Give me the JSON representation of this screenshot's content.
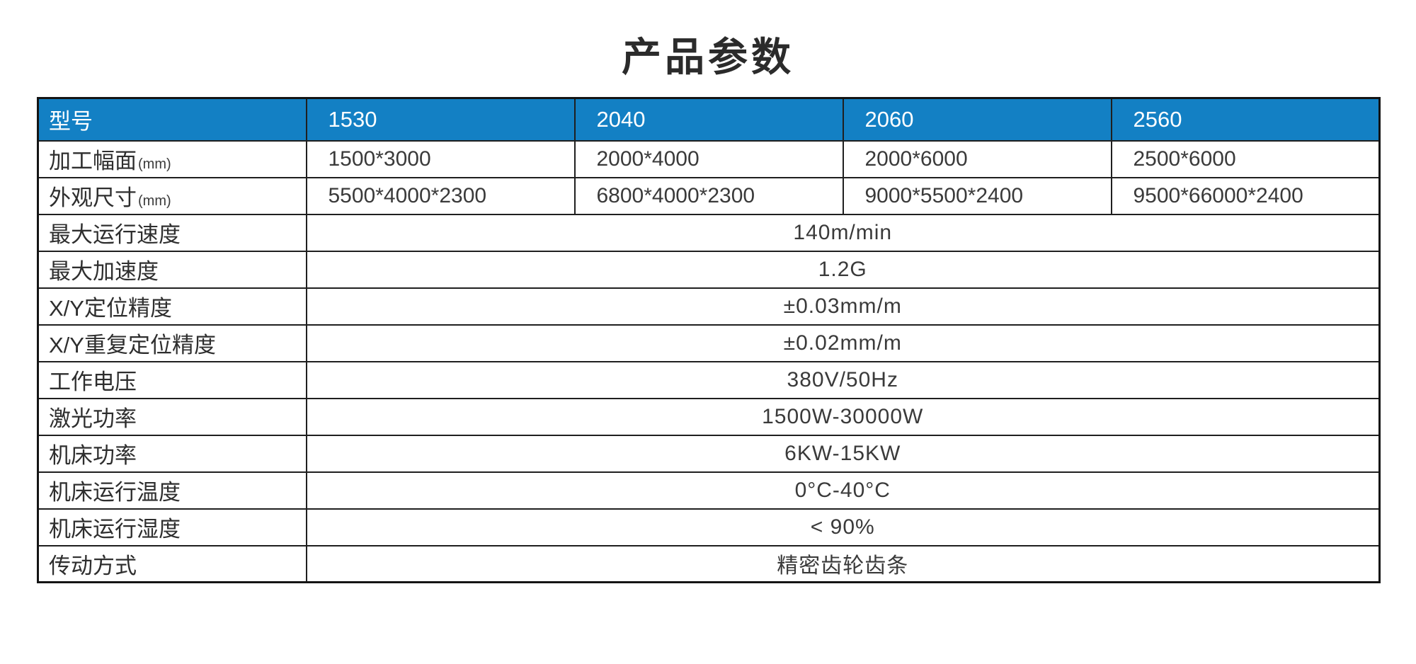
{
  "page": {
    "title": "产品参数"
  },
  "colors": {
    "header_bg": "#1380C4",
    "header_text": "#FFFFFF",
    "border": "#1F1F1F",
    "body_text": "#3A3A3A"
  },
  "table": {
    "header": {
      "label": "型号",
      "models": [
        "1530",
        "2040",
        "2060",
        "2560"
      ]
    },
    "model_rows": [
      {
        "label": "加工幅面",
        "suffix": "(mm)",
        "values": [
          "1500*3000",
          "2000*4000",
          "2000*6000",
          "2500*6000"
        ]
      },
      {
        "label": "外观尺寸",
        "suffix": "(mm)",
        "values": [
          "5500*4000*2300",
          "6800*4000*2300",
          "9000*5500*2400",
          "9500*66000*2400"
        ]
      }
    ],
    "span_rows": [
      {
        "label": "最大运行速度",
        "value": "140m/min"
      },
      {
        "label": "最大加速度",
        "value": "1.2G"
      },
      {
        "label": "X/Y定位精度",
        "value": "±0.03mm/m"
      },
      {
        "label": "X/Y重复定位精度",
        "value": "±0.02mm/m"
      },
      {
        "label": "工作电压",
        "value": "380V/50Hz"
      },
      {
        "label": "激光功率",
        "value": "1500W-30000W"
      },
      {
        "label": "机床功率",
        "value": "6KW-15KW"
      },
      {
        "label": "机床运行温度",
        "value": "0°C-40°C"
      },
      {
        "label": "机床运行湿度",
        "value": "< 90%"
      },
      {
        "label": "传动方式",
        "value": "精密齿轮齿条"
      }
    ]
  }
}
